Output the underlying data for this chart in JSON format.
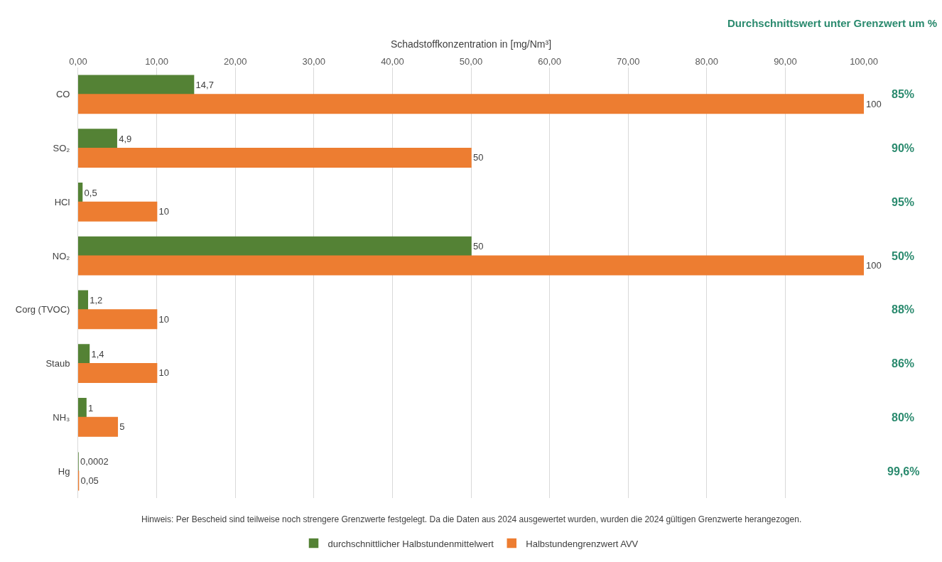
{
  "chart_data": {
    "type": "bar",
    "orientation": "horizontal",
    "xlabel": "Schadstoffkonzentration in [mg/Nm³]",
    "categories": [
      "CO",
      "SO₂",
      "HCl",
      "NO₂",
      "Corg (TVOC)",
      "Staub",
      "NH₃",
      "Hg"
    ],
    "series": [
      {
        "name": "durchschnittlicher Halbstundenmittelwert",
        "color": "#548235",
        "values": [
          14.7,
          4.9,
          0.5,
          50,
          1.2,
          1.4,
          1,
          0.0002
        ],
        "value_labels": [
          "14,7",
          "4,9",
          "0,5",
          "50",
          "1,2",
          "1,4",
          "1",
          "0,0002"
        ]
      },
      {
        "name": "Halbstundengrenzwert AVV",
        "color": "#ed7d31",
        "values": [
          100,
          50,
          10,
          100,
          10,
          10,
          5,
          0.05
        ],
        "value_labels": [
          "100",
          "50",
          "10",
          "100",
          "10",
          "10",
          "5",
          "0,05"
        ]
      }
    ],
    "xlim": [
      0,
      100
    ],
    "xticks": [
      {
        "value": 0,
        "label": "0,00"
      },
      {
        "value": 10,
        "label": "10,00"
      },
      {
        "value": 20,
        "label": "20,00"
      },
      {
        "value": 30,
        "label": "30,00"
      },
      {
        "value": 40,
        "label": "40,00"
      },
      {
        "value": 50,
        "label": "50,00"
      },
      {
        "value": 60,
        "label": "60,00"
      },
      {
        "value": 70,
        "label": "70,00"
      },
      {
        "value": 80,
        "label": "80,00"
      },
      {
        "value": 90,
        "label": "90,00"
      },
      {
        "value": 100,
        "label": "100,00"
      }
    ],
    "grid": "x",
    "legend": "bottom",
    "annotations": [
      "Durchschnittswert unter Grenzwert um %",
      "85%",
      "90%",
      "95%",
      "50%",
      "88%",
      "86%",
      "80%",
      "99,6%",
      "Hinweis: Per Bescheid sind teilweise noch strengere Grenzwerte festgelegt. Da die Daten aus 2024 ausgewertet wurden, wurden die 2024 gültigen Grenzwerte herangezogen."
    ]
  }
}
